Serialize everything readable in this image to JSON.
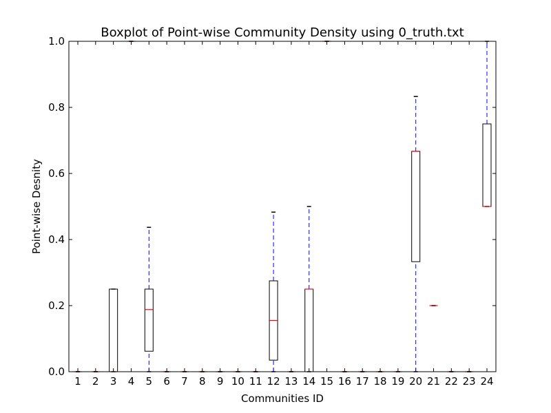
{
  "chart_data": {
    "type": "box",
    "title": "Boxplot of Point-wise Community Density using 0_truth.txt",
    "xlabel": "Communities ID",
    "ylabel": "Point-wise Desnity",
    "ylim": [
      0.0,
      1.0
    ],
    "yticks": [
      "0.0",
      "0.2",
      "0.4",
      "0.6",
      "0.8",
      "1.0"
    ],
    "grid": false,
    "colors": {
      "box": "#000000",
      "median": "#ff0000",
      "whisker": "#0000ff",
      "cap": "#000000"
    },
    "categories": [
      "1",
      "2",
      "3",
      "4",
      "5",
      "6",
      "7",
      "8",
      "9",
      "10",
      "11",
      "12",
      "13",
      "14",
      "15",
      "16",
      "17",
      "18",
      "19",
      "20",
      "21",
      "22",
      "23",
      "24"
    ],
    "boxes": [
      {
        "id": "1",
        "whislo": 0.0,
        "q1": 0.0,
        "med": 0.0,
        "q3": 0.0,
        "whishi": 0.0
      },
      {
        "id": "2",
        "whislo": 0.0,
        "q1": 0.0,
        "med": 0.0,
        "q3": 0.0,
        "whishi": 0.0
      },
      {
        "id": "3",
        "whislo": 0.0,
        "q1": 0.0,
        "med": 0.0,
        "q3": 0.25,
        "whishi": 0.25
      },
      {
        "id": "4",
        "whislo": 1.0,
        "q1": 1.0,
        "med": 1.0,
        "q3": 1.0,
        "whishi": 1.0
      },
      {
        "id": "5",
        "whislo": 0.0,
        "q1": 0.062,
        "med": 0.188,
        "q3": 0.25,
        "whishi": 0.437
      },
      {
        "id": "6",
        "whislo": 0.0,
        "q1": 0.0,
        "med": 0.0,
        "q3": 0.0,
        "whishi": 0.0
      },
      {
        "id": "7",
        "whislo": 0.0,
        "q1": 0.0,
        "med": 0.0,
        "q3": 0.0,
        "whishi": 0.0
      },
      {
        "id": "8",
        "whislo": 0.0,
        "q1": 0.0,
        "med": 0.0,
        "q3": 0.0,
        "whishi": 0.0
      },
      {
        "id": "9",
        "whislo": 0.0,
        "q1": 0.0,
        "med": 0.0,
        "q3": 0.0,
        "whishi": 0.0
      },
      {
        "id": "10",
        "whislo": 0.0,
        "q1": 0.0,
        "med": 0.0,
        "q3": 0.0,
        "whishi": 0.0
      },
      {
        "id": "11",
        "whislo": 0.0,
        "q1": 0.0,
        "med": 0.0,
        "q3": 0.0,
        "whishi": 0.0
      },
      {
        "id": "12",
        "whislo": 0.0,
        "q1": 0.035,
        "med": 0.155,
        "q3": 0.275,
        "whishi": 0.483
      },
      {
        "id": "13",
        "whislo": 0.0,
        "q1": 0.0,
        "med": 0.0,
        "q3": 0.0,
        "whishi": 0.0
      },
      {
        "id": "14",
        "whislo": 0.0,
        "q1": 0.0,
        "med": 0.25,
        "q3": 0.25,
        "whishi": 0.5
      },
      {
        "id": "15",
        "whislo": 1.0,
        "q1": 1.0,
        "med": 1.0,
        "q3": 1.0,
        "whishi": 1.0
      },
      {
        "id": "16",
        "whislo": 0.0,
        "q1": 0.0,
        "med": 0.0,
        "q3": 0.0,
        "whishi": 0.0
      },
      {
        "id": "17",
        "whislo": 0.0,
        "q1": 0.0,
        "med": 0.0,
        "q3": 0.0,
        "whishi": 0.0
      },
      {
        "id": "18",
        "whislo": 0.0,
        "q1": 0.0,
        "med": 0.0,
        "q3": 0.0,
        "whishi": 0.0
      },
      {
        "id": "19",
        "whislo": 0.0,
        "q1": 0.0,
        "med": 0.0,
        "q3": 0.0,
        "whishi": 0.0
      },
      {
        "id": "20",
        "whislo": 0.0,
        "q1": 0.333,
        "med": 0.667,
        "q3": 0.667,
        "whishi": 0.833
      },
      {
        "id": "21",
        "whislo": 0.2,
        "q1": 0.2,
        "med": 0.2,
        "q3": 0.2,
        "whishi": 0.2
      },
      {
        "id": "22",
        "whislo": 0.0,
        "q1": 0.0,
        "med": 0.0,
        "q3": 0.0,
        "whishi": 0.0
      },
      {
        "id": "23",
        "whislo": 0.0,
        "q1": 0.0,
        "med": 0.0,
        "q3": 0.0,
        "whishi": 0.0
      },
      {
        "id": "24",
        "whislo": 0.5,
        "q1": 0.5,
        "med": 0.5,
        "q3": 0.75,
        "whishi": 1.0
      }
    ]
  }
}
